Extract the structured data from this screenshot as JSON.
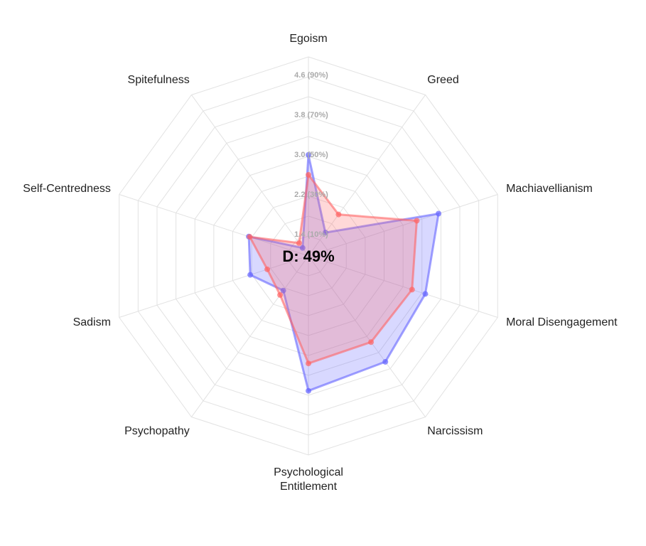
{
  "chart_data": {
    "type": "radar",
    "categories": [
      "Egoism",
      "Greed",
      "Machiavellianism",
      "Moral Disengagement",
      "Narcissism",
      "Psychological Entitlement",
      "Psychopathy",
      "Sadism",
      "Self-Centredness",
      "Spitefulness"
    ],
    "series": [
      {
        "color": "#6464ff",
        "values": [
          3.03,
          1.58,
          3.75,
          3.47,
          3.63,
          3.71,
          1.86,
          2.23,
          2.26,
          1.2
        ]
      },
      {
        "color": "#ff6464",
        "values": [
          2.63,
          2.03,
          3.29,
          3.19,
          3.14,
          3.16,
          1.97,
          1.87,
          2.24,
          1.32
        ]
      }
    ],
    "rlim": [
      1.0,
      5.0
    ],
    "rings": [
      1.4,
      1.8,
      2.2,
      2.6,
      3.0,
      3.4,
      3.8,
      4.2,
      4.6,
      5.0
    ],
    "rticks": [
      {
        "value": 1.4,
        "label": "1.4 (10%)"
      },
      {
        "value": 2.2,
        "label": "2.2 (30%)"
      },
      {
        "value": 3.0,
        "label": "3.0 (50%)"
      },
      {
        "value": 3.8,
        "label": "3.8 (70%)"
      },
      {
        "value": 4.6,
        "label": "4.6 (90%)"
      }
    ],
    "annotation": "D: 49%",
    "grid": true
  }
}
